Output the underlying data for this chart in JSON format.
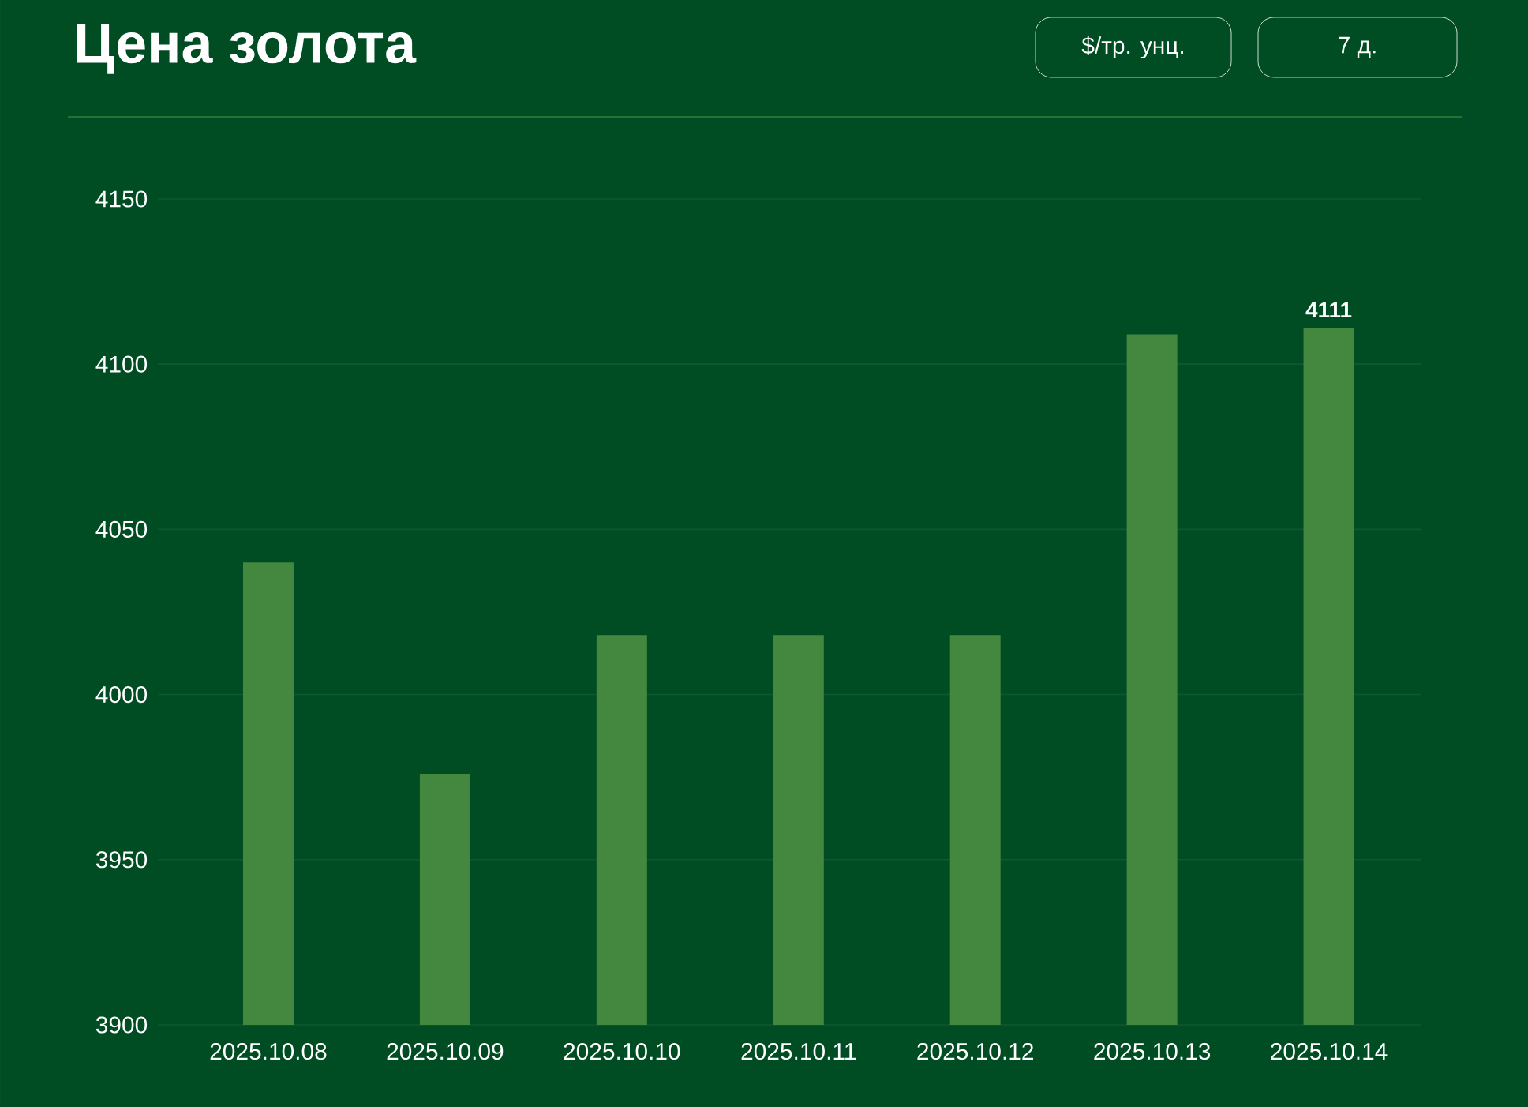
{
  "chart_data": {
    "type": "bar",
    "title": "Цена золота",
    "annotations": [
      "$/тр. унц.",
      "7 д."
    ],
    "categories": [
      "2025.10.08",
      "2025.10.09",
      "2025.10.10",
      "2025.10.11",
      "2025.10.12",
      "2025.10.13",
      "2025.10.14"
    ],
    "values": [
      4040,
      3976,
      4018,
      4018,
      4018,
      4109,
      4111
    ],
    "value_labels": [
      null,
      null,
      null,
      null,
      null,
      null,
      "4111"
    ],
    "color": "#44883f",
    "ylim": [
      3900,
      4150
    ],
    "yticks": [
      3900,
      3950,
      4000,
      4050,
      4100,
      4150
    ],
    "grid": "y"
  }
}
